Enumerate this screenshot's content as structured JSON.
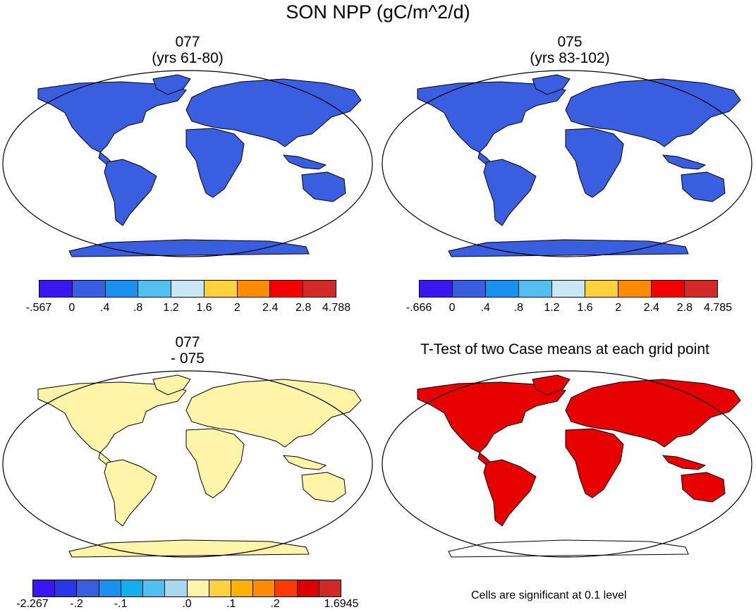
{
  "figure_title": "SON NPP (gC/m^2/d)",
  "panels": {
    "top_left": {
      "title_line1": "077",
      "title_line2": "(yrs 61-80)"
    },
    "top_right": {
      "title_line1": "075",
      "title_line2": "(yrs 83-102)"
    },
    "bottom_left": {
      "title_line1": "077",
      "title_line2": "- 075"
    },
    "bottom_right": {
      "title": "T-Test of two Case means at each grid point",
      "note": "Cells are significant at 0.1 level"
    }
  },
  "colorbars": {
    "top_left": {
      "colors": [
        "#3a17f0",
        "#3a5ee0",
        "#1a90f0",
        "#50c0f0",
        "#c8e8f8",
        "#ffd23c",
        "#ff8c00",
        "#f50000",
        "#d22828"
      ],
      "labels": [
        "-.567",
        "0",
        ".4",
        ".8",
        "1.2",
        "1.6",
        "2",
        "2.4",
        "2.8",
        "4.788"
      ]
    },
    "top_right": {
      "colors": [
        "#3a17f0",
        "#3a5ee0",
        "#1a90f0",
        "#50c0f0",
        "#c8e8f8",
        "#ffd23c",
        "#ff8c00",
        "#f50000",
        "#d22828"
      ],
      "labels": [
        "-.666",
        "0",
        ".4",
        ".8",
        "1.2",
        "1.6",
        "2",
        "2.4",
        "2.8",
        "4.785"
      ]
    },
    "bottom_left": {
      "colors": [
        "#3a17f0",
        "#2838e8",
        "#3a5ee0",
        "#1a90f0",
        "#10b0f0",
        "#50c0f0",
        "#a8d8f0",
        "#fff4a8",
        "#ffd23c",
        "#ffb000",
        "#ff8c00",
        "#ff3a00",
        "#dc0000",
        "#d22828"
      ],
      "labels": [
        "-2.267",
        "",
        "-.2",
        "",
        "-.1",
        "",
        "",
        ".0",
        "",
        ".1",
        "",
        ".2",
        "",
        "",
        "1.6945"
      ]
    }
  },
  "map_fill": {
    "top_left": "#3a5ee0",
    "top_right": "#3a5ee0",
    "bottom_left": "#fff4a8",
    "bottom_right": "#e60000"
  }
}
